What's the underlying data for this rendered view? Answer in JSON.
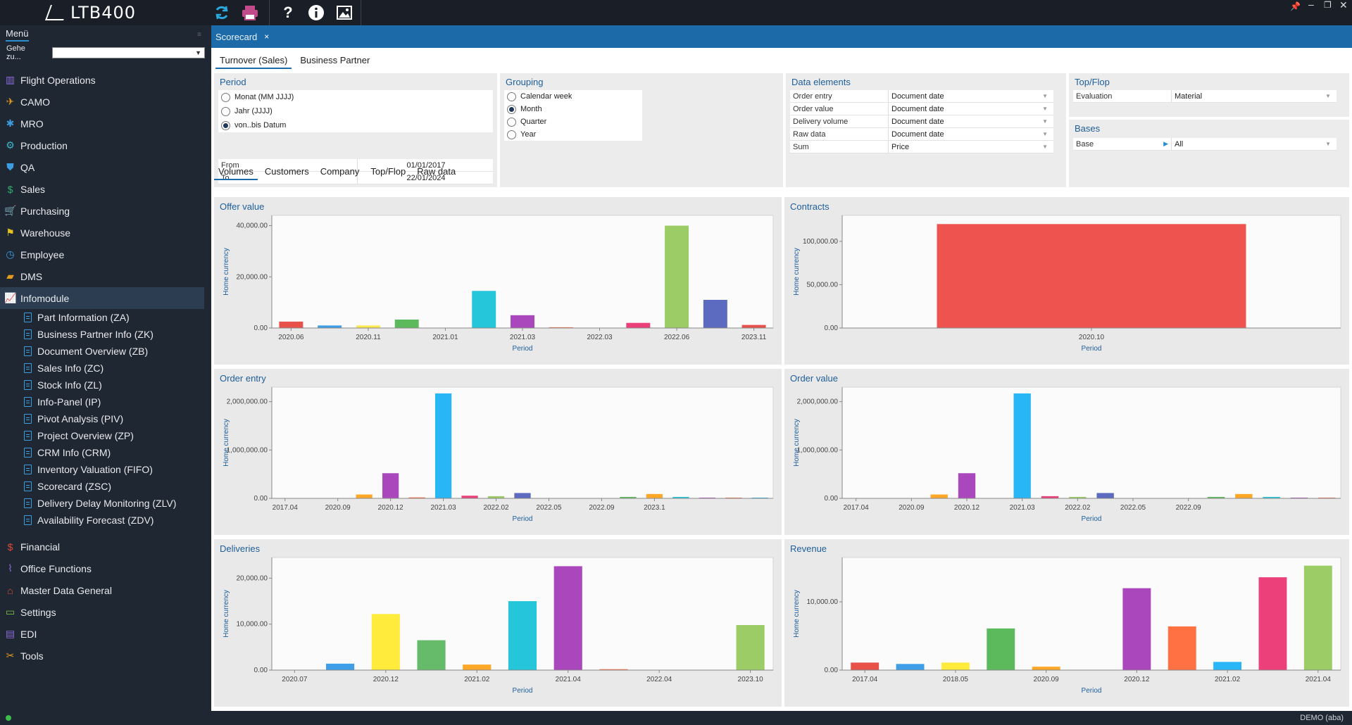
{
  "app": {
    "logo": "LTB400",
    "user": "DEMO (aba)",
    "toolbar": {
      "refresh": "refresh-icon",
      "print": "print-icon",
      "help": "?",
      "info": "i",
      "image": "image-icon"
    }
  },
  "sidebar": {
    "menu_label": "Menü",
    "goto_label": "Gehe zu...",
    "goto_value": "",
    "items": [
      {
        "label": "Flight Operations",
        "icon": "chart-icon",
        "color": "#8a6bd8"
      },
      {
        "label": "CAMO",
        "icon": "plane-icon",
        "color": "#e69a1c"
      },
      {
        "label": "MRO",
        "icon": "gear-icon",
        "color": "#3d9be0"
      },
      {
        "label": "Production",
        "icon": "gears-icon",
        "color": "#3db8c8"
      },
      {
        "label": "QA",
        "icon": "shield-icon",
        "color": "#3d9be0"
      },
      {
        "label": "Sales",
        "icon": "dollar-icon",
        "color": "#2eb36b"
      },
      {
        "label": "Purchasing",
        "icon": "cart-icon",
        "color": "#9b59b6"
      },
      {
        "label": "Warehouse",
        "icon": "forklift-icon",
        "color": "#e6c21c"
      },
      {
        "label": "Employee",
        "icon": "clock-icon",
        "color": "#3d9be0"
      },
      {
        "label": "DMS",
        "icon": "folder-icon",
        "color": "#e69a1c"
      },
      {
        "label": "Infomodule",
        "icon": "linechart-icon",
        "color": "#3d9be0"
      }
    ],
    "sub_items": [
      "Part Information (ZA)",
      "Business Partner Info (ZK)",
      "Document Overview (ZB)",
      "Sales Info (ZC)",
      "Stock Info (ZL)",
      "Info-Panel (IP)",
      "Pivot Analysis (PIV)",
      "Project Overview (ZP)",
      "CRM Info (CRM)",
      "Inventory Valuation (FIFO)",
      "Scorecard (ZSC)",
      "Delivery Delay Monitoring (ZLV)",
      "Availability Forecast (ZDV)"
    ],
    "items_after": [
      {
        "label": "Financial",
        "icon": "money-icon",
        "color": "#e04b3a"
      },
      {
        "label": "Office Functions",
        "icon": "paperclip-icon",
        "color": "#8a6bd8"
      },
      {
        "label": "Master Data General",
        "icon": "home-icon",
        "color": "#e04b3a"
      },
      {
        "label": "Settings",
        "icon": "monitor-icon",
        "color": "#7bc043"
      },
      {
        "label": "EDI",
        "icon": "edi-icon",
        "color": "#8a6bd8"
      },
      {
        "label": "Tools",
        "icon": "tools-icon",
        "color": "#e69a1c"
      }
    ]
  },
  "tab": {
    "label": "Scorecard",
    "close": "×"
  },
  "subtabs": [
    "Turnover (Sales)",
    "Business Partner"
  ],
  "period": {
    "title": "Period",
    "options": [
      "Monat (MM JJJJ)",
      "Jahr (JJJJ)",
      "von..bis Datum"
    ],
    "selected": 2,
    "from_label": "From",
    "from_value": "01/01/2017",
    "to_label": "To",
    "to_value": "22/01/2024"
  },
  "grouping": {
    "title": "Grouping",
    "options": [
      "Calendar week",
      "Month",
      "Quarter",
      "Year"
    ],
    "selected": 1
  },
  "data_elements": {
    "title": "Data elements",
    "rows": [
      {
        "key": "Order entry",
        "value": "Document date"
      },
      {
        "key": "Order value",
        "value": "Document date"
      },
      {
        "key": "Delivery volume",
        "value": "Document date"
      },
      {
        "key": "Raw data",
        "value": "Document date"
      },
      {
        "key": "Sum",
        "value": "Price"
      }
    ]
  },
  "topflop": {
    "title": "Top/Flop",
    "key": "Evaluation",
    "value": "Material"
  },
  "bases": {
    "title": "Bases",
    "key": "Base",
    "value": "All"
  },
  "volume_tabs": [
    "Volumes",
    "Customers",
    "Company",
    "Top/Flop",
    "Raw data"
  ],
  "chart_data": [
    {
      "id": "offer",
      "type": "bar",
      "title": "Offer value",
      "ylabel": "Home currency",
      "xlabel": "Period",
      "ylim": [
        0,
        44000
      ],
      "yticks": [
        0,
        20000,
        40000
      ],
      "ytick_labels": [
        "0.00",
        "20,000.00",
        "40,000.00"
      ],
      "tick_labels": [
        "2020.06",
        "2020.11",
        "2021.01",
        "2021.03",
        "2022.03",
        "2022.06",
        "2023.11"
      ],
      "tick_index": [
        0,
        2,
        4,
        6,
        8,
        10,
        12
      ],
      "values": [
        2500,
        1000,
        1000,
        3300,
        0,
        14500,
        5000,
        300,
        0,
        2000,
        40000,
        11000,
        1200
      ],
      "colors": [
        "#e8504a",
        "#3f9ee8",
        "#fce94f",
        "#5cba5c",
        "#26c6da",
        "#26c6da",
        "#ab47bc",
        "#ff7043",
        "#26c6da",
        "#ec407a",
        "#9ccc65",
        "#5c6bc0",
        "#e8504a"
      ]
    },
    {
      "id": "contracts",
      "type": "bar",
      "title": "Contracts",
      "ylabel": "Home currency",
      "xlabel": "Period",
      "ylim": [
        0,
        130000
      ],
      "yticks": [
        0,
        50000,
        100000
      ],
      "ytick_labels": [
        "0.00",
        "50,000.00",
        "100,000.00"
      ],
      "tick_labels": [
        "2020.10"
      ],
      "tick_index": [
        0
      ],
      "values": [
        120000
      ],
      "colors": [
        "#ef5350"
      ]
    },
    {
      "id": "orderentry",
      "type": "bar",
      "title": "Order entry",
      "ylabel": "Home currency",
      "xlabel": "Period",
      "ylim": [
        0,
        2300000
      ],
      "yticks": [
        0,
        1000000,
        2000000
      ],
      "ytick_labels": [
        "0.00",
        "1,000,000.00",
        "2,000,000.00"
      ],
      "tick_labels": [
        "2017.04",
        "2020.09",
        "2020.12",
        "2021.03",
        "2022.02",
        "2022.05",
        "2022.09",
        "2023.1"
      ],
      "tick_index": [
        0,
        2,
        4,
        6,
        8,
        10,
        12,
        14
      ],
      "values": [
        0,
        0,
        0,
        80000,
        520000,
        20000,
        2170000,
        55000,
        45000,
        110000,
        0,
        0,
        0,
        30000,
        90000,
        30000,
        15000,
        15000,
        15000
      ],
      "colors": [
        "#e8504a",
        "#3f9ee8",
        "#fce94f",
        "#ffa726",
        "#ab47bc",
        "#ff7043",
        "#29b6f6",
        "#ec407a",
        "#9ccc65",
        "#5c6bc0",
        "#e8504a",
        "#3f9ee8",
        "#fce94f",
        "#5cba5c",
        "#ffa726",
        "#26c6da",
        "#ab47bc",
        "#ff7043",
        "#29b6f6"
      ]
    },
    {
      "id": "ordervalue",
      "type": "bar",
      "title": "Order value",
      "ylabel": "Home currency",
      "xlabel": "Period",
      "ylim": [
        0,
        2300000
      ],
      "yticks": [
        0,
        1000000,
        2000000
      ],
      "ytick_labels": [
        "0.00",
        "1,000,000.00",
        "2,000,000.00"
      ],
      "tick_labels": [
        "2017.04",
        "2020.09",
        "2020.12",
        "2021.03",
        "2022.02",
        "2022.05",
        "2022.09"
      ],
      "tick_index": [
        0,
        2,
        4,
        6,
        8,
        10,
        12
      ],
      "values": [
        0,
        0,
        0,
        80000,
        520000,
        0,
        2170000,
        45000,
        30000,
        110000,
        0,
        0,
        0,
        30000,
        90000,
        30000,
        15000,
        15000
      ],
      "colors": [
        "#e8504a",
        "#3f9ee8",
        "#fce94f",
        "#ffa726",
        "#ab47bc",
        "#ff7043",
        "#29b6f6",
        "#ec407a",
        "#9ccc65",
        "#5c6bc0",
        "#e8504a",
        "#3f9ee8",
        "#fce94f",
        "#5cba5c",
        "#ffa726",
        "#26c6da",
        "#ab47bc",
        "#ff7043"
      ]
    },
    {
      "id": "deliveries",
      "type": "bar",
      "title": "Deliveries",
      "ylabel": "Home currency",
      "xlabel": "Period",
      "ylim": [
        0,
        24500
      ],
      "yticks": [
        0,
        10000,
        20000
      ],
      "ytick_labels": [
        "0.00",
        "10,000.00",
        "20,000.00"
      ],
      "tick_labels": [
        "2020.07",
        "2020.12",
        "2021.02",
        "2021.04",
        "2022.04",
        "2023.10"
      ],
      "tick_index": [
        0,
        2,
        4,
        6,
        8,
        10
      ],
      "values": [
        0,
        1400,
        12200,
        6500,
        1200,
        15000,
        22600,
        200,
        0,
        0,
        9800
      ],
      "colors": [
        "#e8504a",
        "#3f9ee8",
        "#ffeb3b",
        "#66bb6a",
        "#ffa726",
        "#26c6da",
        "#ab47bc",
        "#ff7043",
        "#29b6f6",
        "#ec407a",
        "#9ccc65"
      ]
    },
    {
      "id": "revenue",
      "type": "bar",
      "title": "Revenue",
      "ylabel": "Home currency",
      "xlabel": "Period",
      "ylim": [
        0,
        16500
      ],
      "yticks": [
        0,
        10000
      ],
      "ytick_labels": [
        "0.00",
        "10,000.00"
      ],
      "tick_labels": [
        "2017.04",
        "2018.05",
        "2020.09",
        "2020.12",
        "2021.02",
        "2021.04"
      ],
      "tick_index": [
        0,
        2,
        4,
        6,
        8,
        10
      ],
      "values": [
        1100,
        900,
        1100,
        6100,
        500,
        0,
        12000,
        6400,
        1200,
        13600,
        15300
      ],
      "colors": [
        "#e8504a",
        "#3f9ee8",
        "#ffeb3b",
        "#5cba5c",
        "#ffa726",
        "#26c6da",
        "#ab47bc",
        "#ff7043",
        "#29b6f6",
        "#ec407a",
        "#9ccc65"
      ]
    }
  ]
}
